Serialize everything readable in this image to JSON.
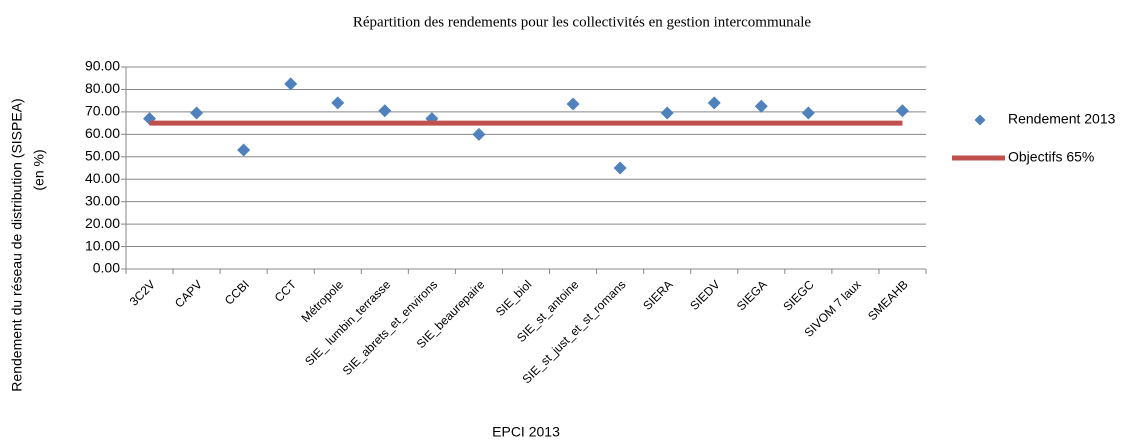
{
  "chart_data": {
    "type": "line",
    "title": "Répartition des rendements pour les collectivités en gestion intercommunale",
    "x_label": "EPCI 2013",
    "y_label": [
      "Rendement du réseau de distribution (SISPEA)",
      "(en %)"
    ],
    "categories": [
      "3C2V",
      "CAPV",
      "CCBI",
      "CCT",
      "Métropole",
      "SIE_ lumbin_terrasse",
      "SIE_abrets_et_environs",
      "SIE_beaurepaire",
      "SIE_biol",
      "SIE_st_antoine",
      "SIE_st_just_et_st_romans",
      "SIERA",
      "SIEDV",
      "SIEGA",
      "SIEGC",
      "SIVOM 7 laux",
      "SMEAHB"
    ],
    "series": [
      {
        "name": "Rendement 2013",
        "color": "#4f81bd",
        "marker": "diamond",
        "line": false,
        "values": [
          67,
          69.5,
          53,
          82.5,
          74,
          70.5,
          67,
          60,
          null,
          73.5,
          45,
          69.5,
          74,
          72.5,
          69.5,
          null,
          70.5
        ]
      },
      {
        "name": "Objectifs 65%",
        "color": "#c0504d",
        "marker": "none",
        "line": true,
        "values": [
          65,
          65,
          65,
          65,
          65,
          65,
          65,
          65,
          65,
          65,
          65,
          65,
          65,
          65,
          65,
          65,
          65
        ]
      }
    ],
    "ylim": [
      0,
      90
    ],
    "yticks": [
      {
        "value": 0,
        "label": "0.00"
      },
      {
        "value": 10,
        "label": "10.00"
      },
      {
        "value": 20,
        "label": "20.00"
      },
      {
        "value": 30,
        "label": "30.00"
      },
      {
        "value": 40,
        "label": "40.00"
      },
      {
        "value": 50,
        "label": "50.00"
      },
      {
        "value": 60,
        "label": "60.00"
      },
      {
        "value": 70,
        "label": "70.00"
      },
      {
        "value": 80,
        "label": "80.00"
      },
      {
        "value": 90,
        "label": "90.00"
      }
    ],
    "grid": true,
    "legend": "right"
  }
}
